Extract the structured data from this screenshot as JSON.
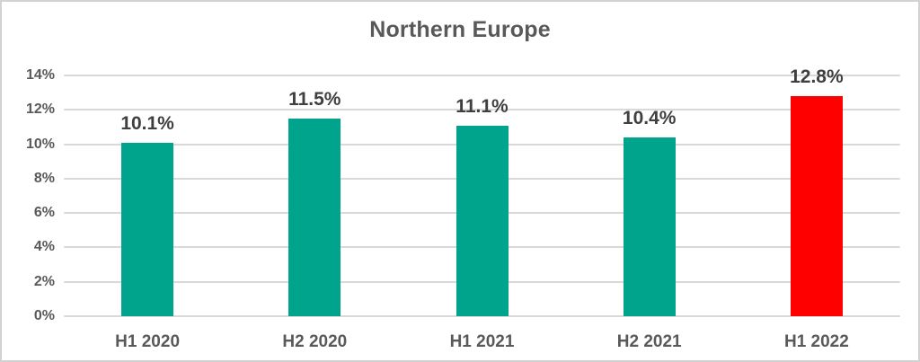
{
  "frame": {
    "background": "#ffffff",
    "border_color": "#d2d2d2"
  },
  "chart_data": {
    "type": "bar",
    "title": "Northern Europe",
    "categories": [
      "H1 2020",
      "H2 2020",
      "H1 2021",
      "H2 2021",
      "H1 2022"
    ],
    "values": [
      10.1,
      11.5,
      11.1,
      10.4,
      12.8
    ],
    "data_labels": [
      "10.1%",
      "11.5%",
      "11.1%",
      "10.4%",
      "12.8%"
    ],
    "bar_colors": [
      "#00A38B",
      "#00A38B",
      "#00A38B",
      "#00A38B",
      "#FF0000"
    ],
    "series_color": "#00A38B",
    "highlight_color": "#FF0000",
    "xlabel": "",
    "ylabel": "",
    "ylim": [
      0,
      14
    ],
    "ytick_step": 2,
    "yticks": [
      "0%",
      "2%",
      "4%",
      "6%",
      "8%",
      "10%",
      "12%",
      "14%"
    ],
    "grid": true,
    "legend": "none",
    "gridline_color": "#d9d9d9",
    "title_color": "#595959",
    "tick_label_color": "#595959",
    "category_label_color": "#595959",
    "data_label_color": "#3f3f3f"
  }
}
